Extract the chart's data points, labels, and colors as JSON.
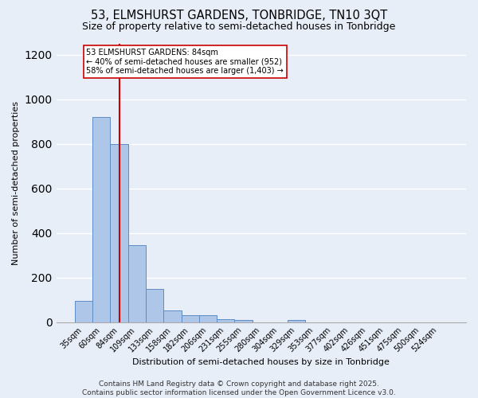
{
  "title": "53, ELMSHURST GARDENS, TONBRIDGE, TN10 3QT",
  "subtitle": "Size of property relative to semi-detached houses in Tonbridge",
  "xlabel": "Distribution of semi-detached houses by size in Tonbridge",
  "ylabel": "Number of semi-detached properties",
  "categories": [
    "35sqm",
    "60sqm",
    "84sqm",
    "109sqm",
    "133sqm",
    "158sqm",
    "182sqm",
    "206sqm",
    "231sqm",
    "255sqm",
    "280sqm",
    "304sqm",
    "329sqm",
    "353sqm",
    "377sqm",
    "402sqm",
    "426sqm",
    "451sqm",
    "475sqm",
    "500sqm",
    "524sqm"
  ],
  "values": [
    95,
    920,
    800,
    345,
    150,
    52,
    30,
    30,
    12,
    8,
    0,
    0,
    10,
    0,
    0,
    0,
    0,
    0,
    0,
    0,
    0
  ],
  "bar_color": "#aec6e8",
  "bar_edge_color": "#5b8cc4",
  "highlight_index": 2,
  "highlight_line_color": "#cc0000",
  "annotation_text": "53 ELMSHURST GARDENS: 84sqm\n← 40% of semi-detached houses are smaller (952)\n58% of semi-detached houses are larger (1,403) →",
  "annotation_box_color": "#ffffff",
  "annotation_box_edge": "#cc0000",
  "ylim": [
    0,
    1250
  ],
  "yticks": [
    0,
    200,
    400,
    600,
    800,
    1000,
    1200
  ],
  "footer": "Contains HM Land Registry data © Crown copyright and database right 2025.\nContains public sector information licensed under the Open Government Licence v3.0.",
  "bg_color": "#e8eef8",
  "grid_color": "#ffffff",
  "title_fontsize": 10.5,
  "subtitle_fontsize": 9,
  "label_fontsize": 8,
  "tick_fontsize": 7,
  "footer_fontsize": 6.5
}
